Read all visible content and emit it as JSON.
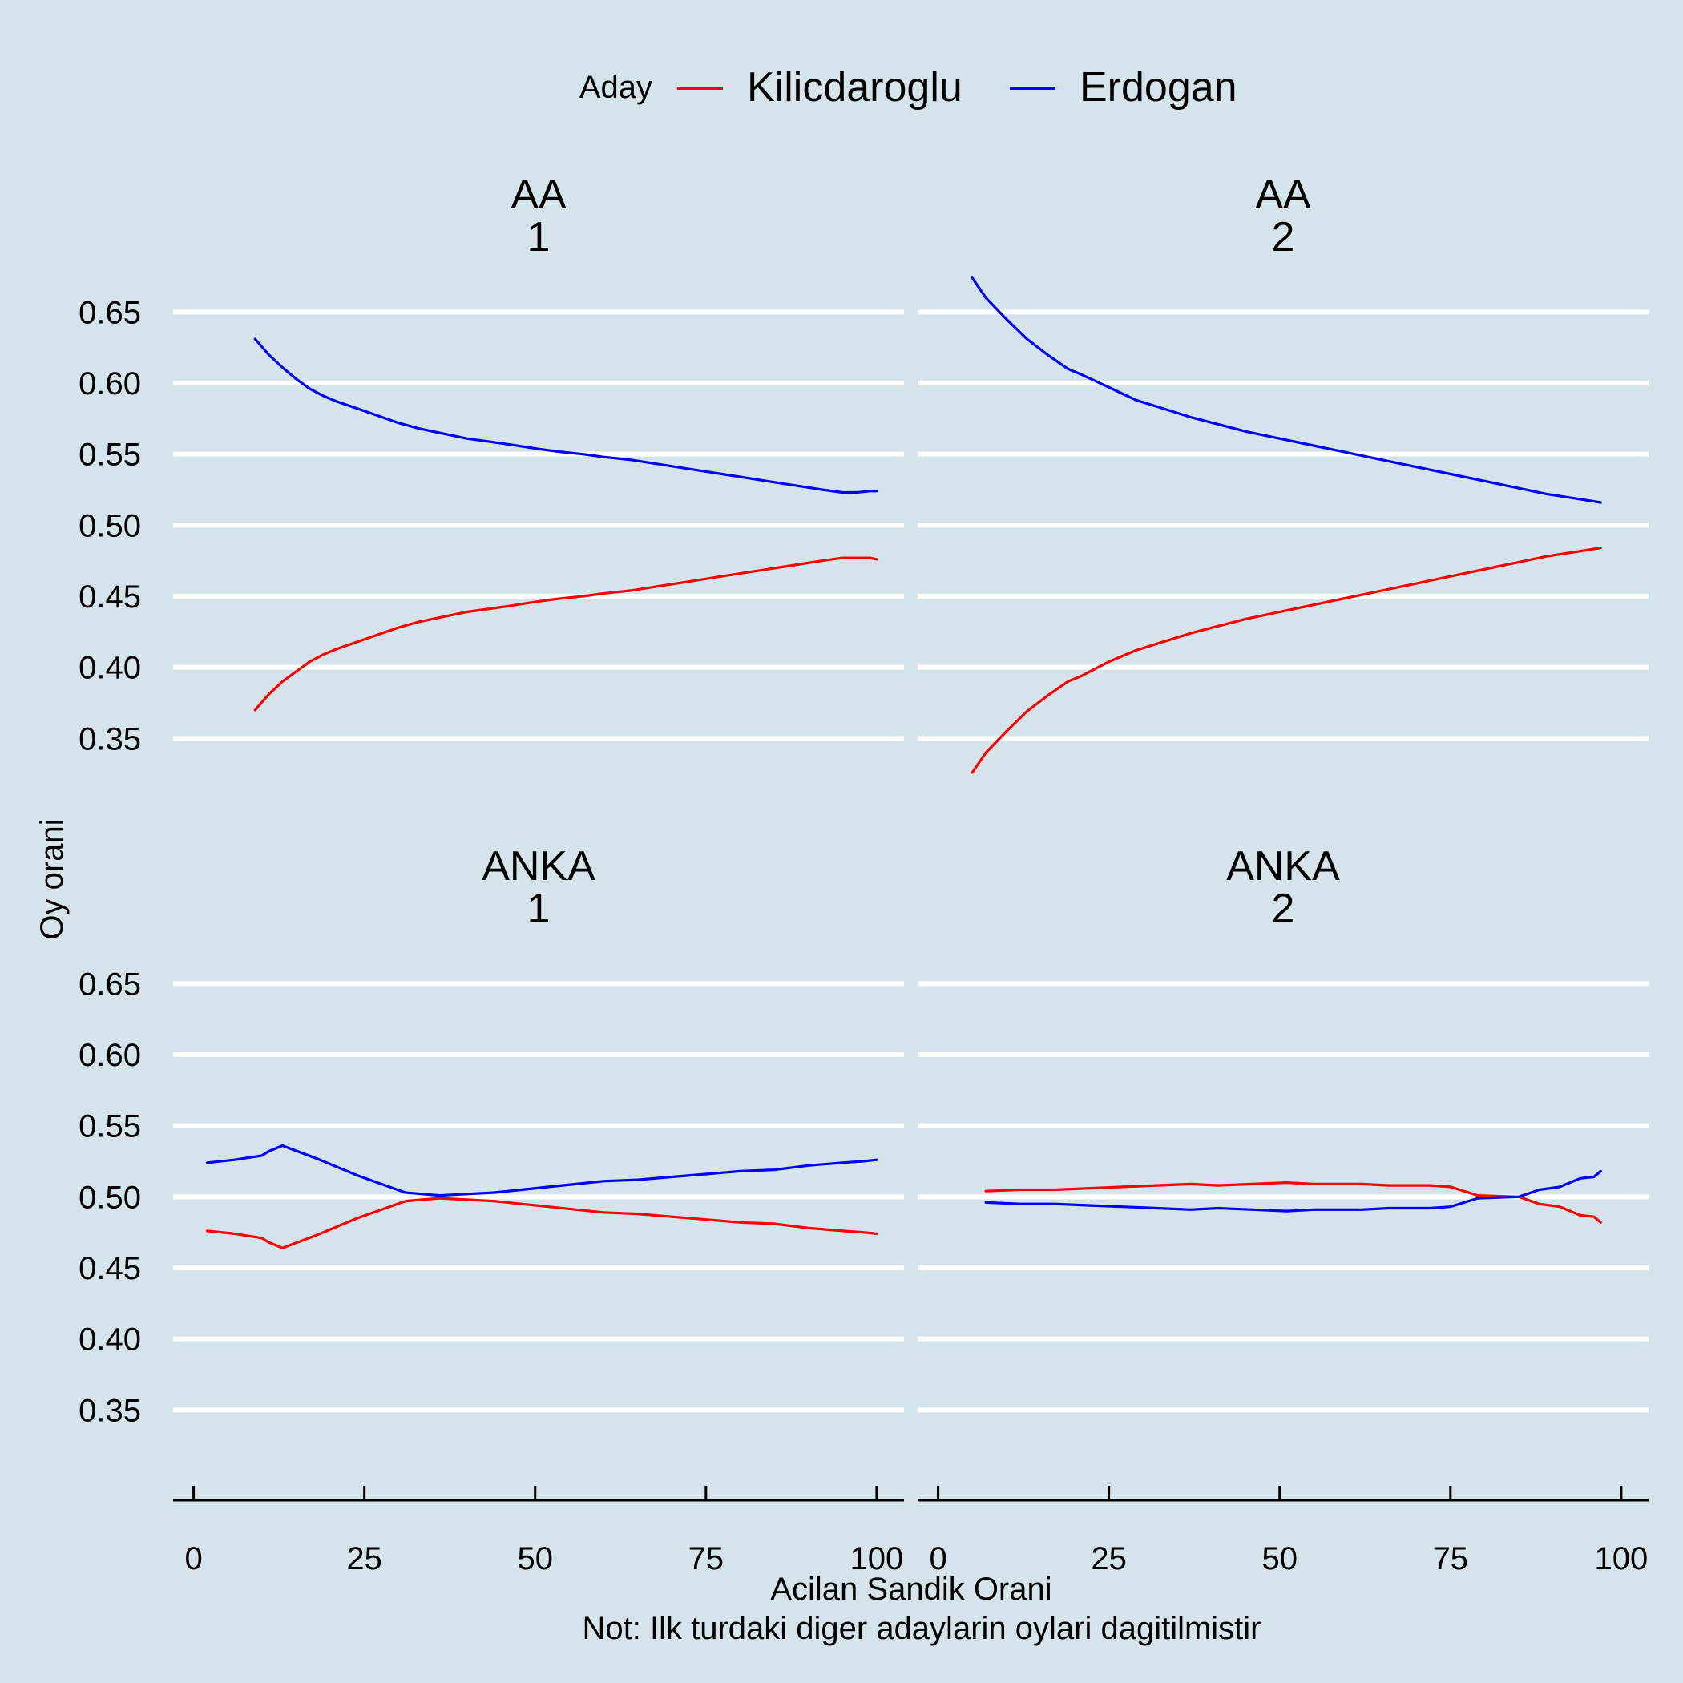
{
  "legend": {
    "title": "Aday",
    "items": [
      {
        "label": "Kilicdaroglu",
        "color": "#ff0000"
      },
      {
        "label": "Erdogan",
        "color": "#0000ff"
      }
    ]
  },
  "xlabel": "Acilan Sandik Orani",
  "note": "Not: Ilk turdaki diger adaylarin oylari dagitilmistir",
  "ylabel": "Oy orani",
  "chart_data": {
    "type": "line",
    "xlim": [
      -3,
      104
    ],
    "ylim": [
      0.3,
      0.675
    ],
    "x_ticks": [
      0,
      25,
      50,
      75,
      100
    ],
    "y_ticks": [
      0.35,
      0.4,
      0.45,
      0.5,
      0.55,
      0.6,
      0.65
    ],
    "y_tick_labels": [
      "0.35",
      "0.40",
      "0.45",
      "0.50",
      "0.55",
      "0.60",
      "0.65"
    ],
    "grid": "horizontal major",
    "legend_position": "top",
    "panels": [
      {
        "strip": [
          "AA",
          "1"
        ],
        "series": [
          {
            "name": "Kilicdaroglu",
            "color": "#ff0000",
            "x": [
              9,
              11,
              13,
              15,
              17,
              19,
              21,
              24,
              27,
              30,
              33,
              36,
              37,
              40,
              43,
              46,
              50,
              53,
              57,
              60,
              64,
              68,
              72,
              76,
              80,
              84,
              88,
              92,
              95,
              97,
              99,
              100
            ],
            "y": [
              0.37,
              0.381,
              0.39,
              0.397,
              0.404,
              0.409,
              0.413,
              0.418,
              0.423,
              0.428,
              0.432,
              0.435,
              0.436,
              0.439,
              0.441,
              0.443,
              0.446,
              0.448,
              0.45,
              0.452,
              0.454,
              0.457,
              0.46,
              0.463,
              0.466,
              0.469,
              0.472,
              0.475,
              0.477,
              0.477,
              0.477,
              0.476
            ]
          },
          {
            "name": "Erdogan",
            "color": "#0000ff",
            "x": [
              9,
              11,
              13,
              15,
              17,
              19,
              21,
              24,
              27,
              30,
              33,
              36,
              37,
              40,
              43,
              46,
              50,
              53,
              57,
              60,
              64,
              68,
              72,
              76,
              80,
              84,
              88,
              92,
              95,
              97,
              99,
              100
            ],
            "y": [
              0.631,
              0.62,
              0.611,
              0.603,
              0.596,
              0.591,
              0.587,
              0.582,
              0.577,
              0.572,
              0.568,
              0.565,
              0.564,
              0.561,
              0.559,
              0.557,
              0.554,
              0.552,
              0.55,
              0.548,
              0.546,
              0.543,
              0.54,
              0.537,
              0.534,
              0.531,
              0.528,
              0.525,
              0.523,
              0.523,
              0.524,
              0.524
            ]
          }
        ]
      },
      {
        "strip": [
          "AA",
          "2"
        ],
        "series": [
          {
            "name": "Kilicdaroglu",
            "color": "#ff0000",
            "x": [
              5,
              7,
              10,
              13,
              16,
              19,
              21,
              25,
              29,
              33,
              37,
              41,
              45,
              49,
              53,
              57,
              61,
              65,
              69,
              73,
              77,
              81,
              85,
              89,
              93,
              97
            ],
            "y": [
              0.326,
              0.34,
              0.355,
              0.369,
              0.38,
              0.39,
              0.394,
              0.404,
              0.412,
              0.418,
              0.424,
              0.429,
              0.434,
              0.438,
              0.442,
              0.446,
              0.45,
              0.454,
              0.458,
              0.462,
              0.466,
              0.47,
              0.474,
              0.478,
              0.481,
              0.484
            ]
          },
          {
            "name": "Erdogan",
            "color": "#0000ff",
            "x": [
              5,
              7,
              10,
              13,
              16,
              19,
              21,
              25,
              29,
              33,
              37,
              41,
              45,
              49,
              53,
              57,
              61,
              65,
              69,
              73,
              77,
              81,
              85,
              89,
              93,
              97
            ],
            "y": [
              0.674,
              0.66,
              0.645,
              0.631,
              0.62,
              0.61,
              0.606,
              0.597,
              0.588,
              0.582,
              0.576,
              0.571,
              0.566,
              0.562,
              0.558,
              0.554,
              0.55,
              0.546,
              0.542,
              0.538,
              0.534,
              0.53,
              0.526,
              0.522,
              0.519,
              0.516
            ]
          }
        ]
      },
      {
        "strip": [
          "ANKA",
          "1"
        ],
        "series": [
          {
            "name": "Kilicdaroglu",
            "color": "#ff0000",
            "x": [
              2,
              6,
              10,
              11,
              13,
              18,
              24,
              31,
              36,
              40,
              44,
              48,
              52,
              56,
              60,
              65,
              70,
              75,
              80,
              85,
              90,
              95,
              98,
              100
            ],
            "y": [
              0.476,
              0.474,
              0.471,
              0.468,
              0.464,
              0.473,
              0.485,
              0.497,
              0.499,
              0.498,
              0.497,
              0.495,
              0.493,
              0.491,
              0.489,
              0.488,
              0.486,
              0.484,
              0.482,
              0.481,
              0.478,
              0.476,
              0.475,
              0.474
            ]
          },
          {
            "name": "Erdogan",
            "color": "#0000ff",
            "x": [
              2,
              6,
              10,
              11,
              13,
              18,
              24,
              31,
              36,
              40,
              44,
              48,
              52,
              56,
              60,
              65,
              70,
              75,
              80,
              85,
              90,
              95,
              98,
              100
            ],
            "y": [
              0.524,
              0.526,
              0.529,
              0.532,
              0.536,
              0.527,
              0.515,
              0.503,
              0.501,
              0.502,
              0.503,
              0.505,
              0.507,
              0.509,
              0.511,
              0.512,
              0.514,
              0.516,
              0.518,
              0.519,
              0.522,
              0.524,
              0.525,
              0.526
            ]
          }
        ]
      },
      {
        "strip": [
          "ANKA",
          "2"
        ],
        "series": [
          {
            "name": "Kilicdaroglu",
            "color": "#ff0000",
            "x": [
              7,
              12,
              17,
              22,
              27,
              32,
              37,
              41,
              46,
              51,
              55,
              59,
              62,
              66,
              69,
              72,
              75,
              79,
              85,
              88,
              91,
              94,
              96,
              97
            ],
            "y": [
              0.504,
              0.505,
              0.505,
              0.506,
              0.507,
              0.508,
              0.509,
              0.508,
              0.509,
              0.51,
              0.509,
              0.509,
              0.509,
              0.508,
              0.508,
              0.508,
              0.507,
              0.501,
              0.5,
              0.495,
              0.493,
              0.487,
              0.486,
              0.482
            ]
          },
          {
            "name": "Erdogan",
            "color": "#0000ff",
            "x": [
              7,
              12,
              17,
              22,
              27,
              32,
              37,
              41,
              46,
              51,
              55,
              59,
              62,
              66,
              69,
              72,
              75,
              79,
              85,
              88,
              91,
              94,
              96,
              97
            ],
            "y": [
              0.496,
              0.495,
              0.495,
              0.494,
              0.493,
              0.492,
              0.491,
              0.492,
              0.491,
              0.49,
              0.491,
              0.491,
              0.491,
              0.492,
              0.492,
              0.492,
              0.493,
              0.499,
              0.5,
              0.505,
              0.507,
              0.513,
              0.514,
              0.518
            ]
          }
        ]
      }
    ]
  }
}
